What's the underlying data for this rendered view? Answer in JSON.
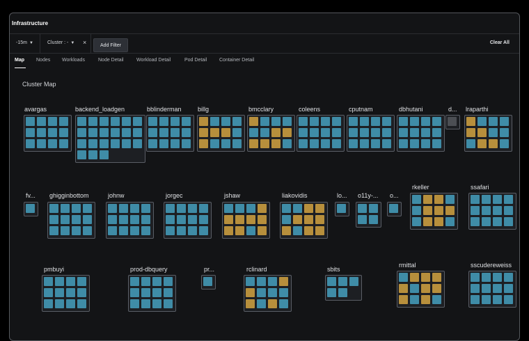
{
  "app": {
    "title": "Infrastructure"
  },
  "filters": {
    "time_range": "-15m",
    "cluster_label": "Cluster : -",
    "clear_filter_icon": "×",
    "add_filter_label": "Add Filter",
    "clear_all_label": "Clear All"
  },
  "tabs": [
    {
      "label": "Map",
      "active": true
    },
    {
      "label": "Nodes",
      "active": false
    },
    {
      "label": "Workloads",
      "active": false
    },
    {
      "label": "Node Detail",
      "active": false
    },
    {
      "label": "Workload Detail",
      "active": false
    },
    {
      "label": "Pod Detail",
      "active": false
    },
    {
      "label": "Container Detail",
      "active": false
    }
  ],
  "map": {
    "title": "Cluster Map",
    "colors": {
      "healthy": "#3f8ca7",
      "warning": "#b78f3c",
      "empty": "#4c4f54"
    },
    "clusters": [
      {
        "name": "avargas",
        "cols": 4,
        "cells": "bbbbbbbbbbbb"
      },
      {
        "name": "backend_loadgen",
        "cols": 6,
        "cells": "bbbbbbbbbbbbbbbbbbbbb"
      },
      {
        "name": "bblinderman",
        "cols": 4,
        "cells": "bbbbbbbbbbbb"
      },
      {
        "name": "billg",
        "cols": 4,
        "cells": "ybbbyyybybbb"
      },
      {
        "name": "bmcclary",
        "cols": 4,
        "cells": "ybbbbbyyyyyb"
      },
      {
        "name": "coleens",
        "cols": 4,
        "cells": "bbbbbbbbbbbb"
      },
      {
        "name": "cputnam",
        "cols": 4,
        "cells": "bbbbbbbbbbbb"
      },
      {
        "name": "dbhutani",
        "cols": 4,
        "cells": "bbbbbbbbbbbb"
      },
      {
        "name": "d...",
        "cols": 1,
        "cells": "g"
      },
      {
        "name": "lraparthi",
        "cols": 4,
        "cells": "ybbbyybbbyyb"
      },
      {
        "name": "fv...",
        "cols": 1,
        "cells": "b"
      },
      {
        "name": "ghigginbottom",
        "cols": 4,
        "cells": "bbbbbbbbbbbb"
      },
      {
        "name": "johnw",
        "cols": 4,
        "cells": "bbbbbbbbbbbb"
      },
      {
        "name": "jorgec",
        "cols": 4,
        "cells": "bbbbbbbbbbbb"
      },
      {
        "name": "jshaw",
        "cols": 4,
        "cells": "bbbyyyyyyyby"
      },
      {
        "name": "liakovidis",
        "cols": 4,
        "cells": "bbyybyyyybyy"
      },
      {
        "name": "lo...",
        "cols": 1,
        "cells": "b"
      },
      {
        "name": "o11y-...",
        "cols": 2,
        "cells": "bbbb"
      },
      {
        "name": "o...",
        "cols": 1,
        "cells": "b"
      },
      {
        "name": "rkeller",
        "cols": 4,
        "cells": "byybbyyybyyb"
      },
      {
        "name": "ssafari",
        "cols": 4,
        "cells": "bbbbbbbbbbbb"
      },
      {
        "name": "pmbuyi",
        "cols": 4,
        "cells": "bbbbbbbbbbbb"
      },
      {
        "name": "prod-dbquery",
        "cols": 4,
        "cells": "bbbbbbbbbbbb"
      },
      {
        "name": "pr...",
        "cols": 1,
        "cells": "b"
      },
      {
        "name": "rclinard",
        "cols": 4,
        "cells": "bbbyybbbybyb"
      },
      {
        "name": "sbits",
        "cols": 3,
        "cells": "bbbbb"
      },
      {
        "name": "rmittal",
        "cols": 4,
        "cells": "byyyybyyybyb"
      },
      {
        "name": "sscudereweiss",
        "cols": 4,
        "cells": "bbbbbbbbbbbb"
      }
    ]
  }
}
